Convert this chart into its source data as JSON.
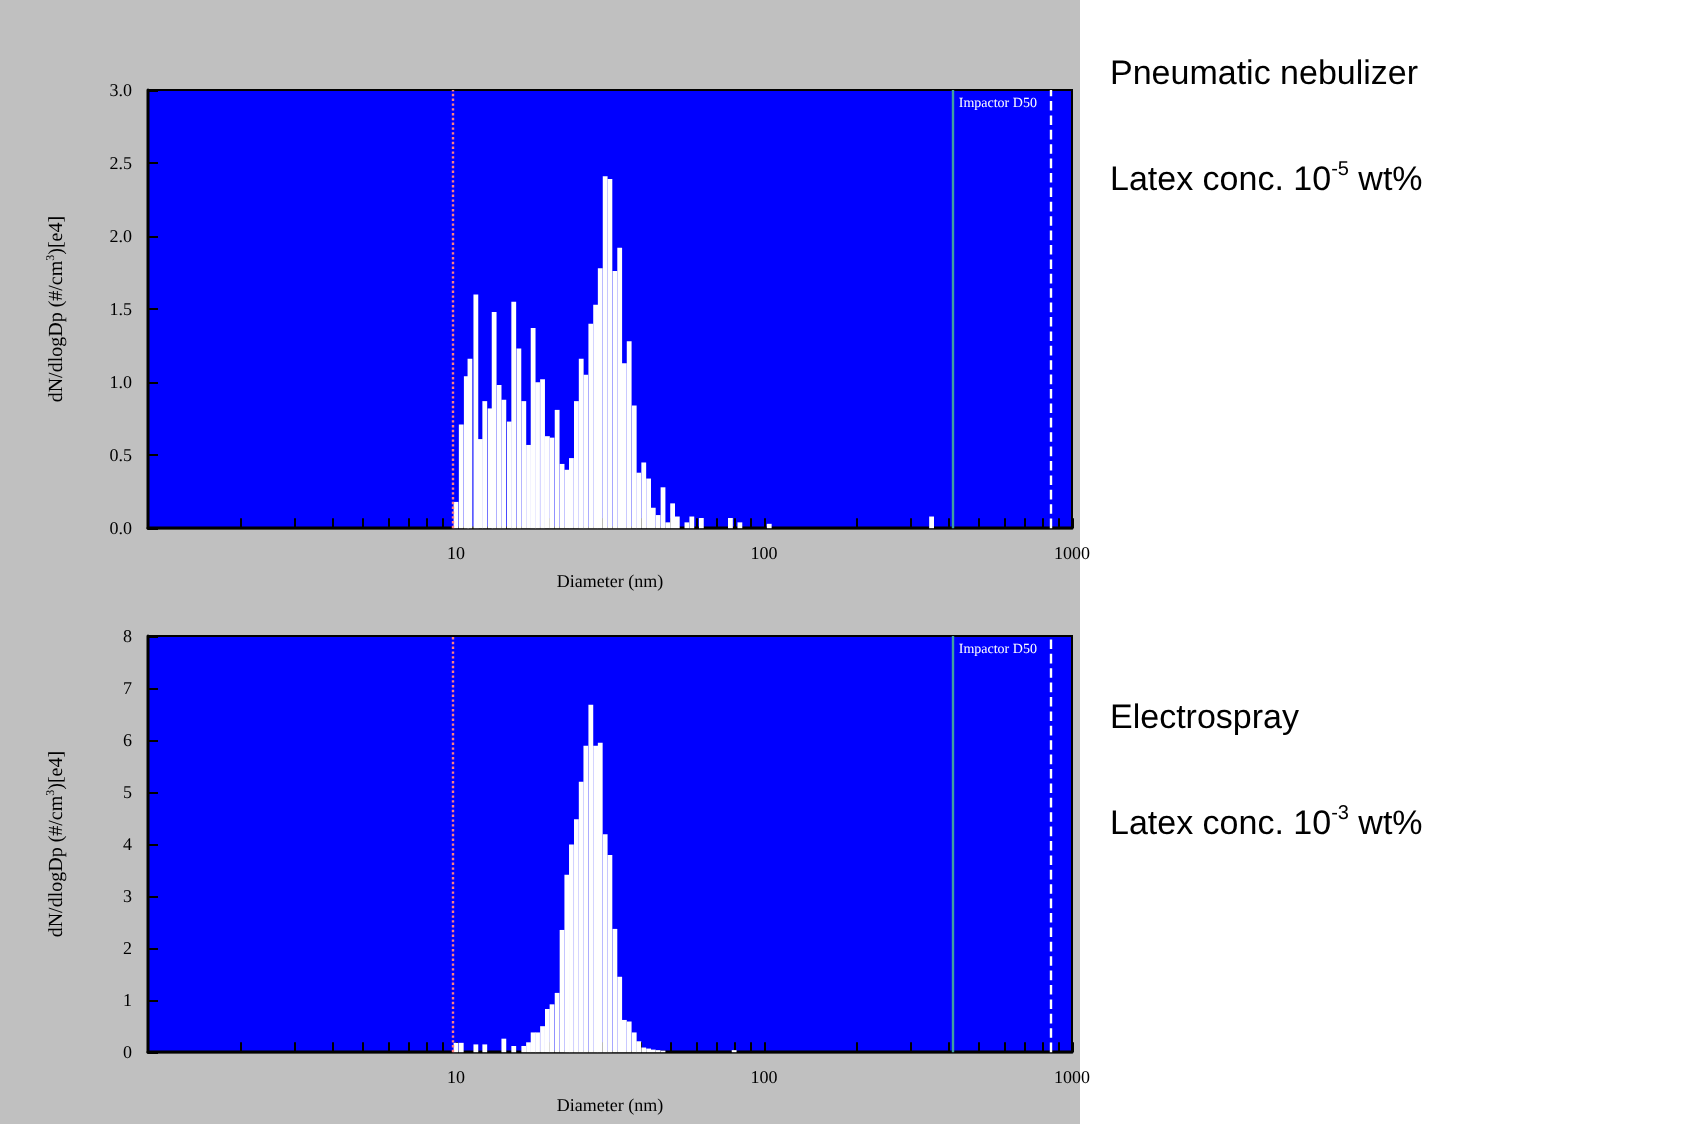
{
  "chart_data": [
    {
      "type": "bar",
      "xlabel": "Diameter (nm)",
      "ylabel": "dN/dlogDp (#/cm$^{3}$)[e4]",
      "color": "#ffffff",
      "log": "x",
      "grid": false,
      "x": [
        10.0,
        10.4,
        10.8,
        11.1,
        11.6,
        12.0,
        12.4,
        12.9,
        13.3,
        13.8,
        14.3,
        14.9,
        15.4,
        16.0,
        16.6,
        17.2,
        17.8,
        18.4,
        19.1,
        19.8,
        20.5,
        21.3,
        22.1,
        22.9,
        23.7,
        24.6,
        25.5,
        26.4,
        27.4,
        28.4,
        29.4,
        30.5,
        31.6,
        32.8,
        34.0,
        35.2,
        36.5,
        37.9,
        39.2,
        40.7,
        42.2,
        43.7,
        45.3,
        47.0,
        48.7,
        50.5,
        52.3,
        56.2,
        58.3,
        62.6,
        77.8,
        83.5,
        104,
        350
      ],
      "values": [
        0.18,
        0.71,
        1.04,
        1.16,
        1.6,
        0.61,
        0.87,
        0.82,
        1.48,
        0.98,
        0.88,
        0.73,
        1.55,
        1.23,
        0.87,
        0.57,
        1.37,
        1.0,
        1.02,
        0.63,
        0.62,
        0.81,
        0.44,
        0.4,
        0.48,
        0.87,
        1.16,
        1.05,
        1.4,
        1.53,
        1.78,
        2.41,
        2.39,
        1.76,
        1.92,
        1.13,
        1.28,
        0.84,
        0.38,
        0.45,
        0.34,
        0.14,
        0.09,
        0.28,
        0.04,
        0.17,
        0.08,
        0.04,
        0.08,
        0.07,
        0.07,
        0.04,
        0.03,
        0.08
      ],
      "xlim": [
        1,
        1000
      ],
      "xticks": [
        {
          "value": 2,
          "label": null
        },
        {
          "value": 3,
          "label": null
        },
        {
          "value": 4,
          "label": null
        },
        {
          "value": 5,
          "label": null
        },
        {
          "value": 6,
          "label": null
        },
        {
          "value": 7,
          "label": null
        },
        {
          "value": 8,
          "label": null
        },
        {
          "value": 9,
          "label": null
        },
        10,
        {
          "value": 20,
          "label": null
        },
        {
          "value": 30,
          "label": null
        },
        {
          "value": 40,
          "label": null
        },
        {
          "value": 50,
          "label": null
        },
        {
          "value": 60,
          "label": null
        },
        {
          "value": 70,
          "label": null
        },
        {
          "value": 80,
          "label": null
        },
        {
          "value": 90,
          "label": null
        },
        100,
        {
          "value": 200,
          "label": null
        },
        {
          "value": 300,
          "label": null
        },
        {
          "value": 400,
          "label": null
        },
        {
          "value": 500,
          "label": null
        },
        {
          "value": 600,
          "label": null
        },
        {
          "value": 700,
          "label": null
        },
        {
          "value": 800,
          "label": null
        },
        {
          "value": 900,
          "label": null
        },
        1000
      ],
      "ylim": [
        0,
        3
      ],
      "yticks": [
        {
          "value": 0,
          "label": "0.0"
        },
        {
          "value": 0.5,
          "label": "0.5"
        },
        {
          "value": 1,
          "label": "1.0"
        },
        {
          "value": 1.5,
          "label": "1.5"
        },
        {
          "value": 2,
          "label": "2.0"
        },
        {
          "value": 2.5,
          "label": "2.5"
        },
        {
          "value": 3,
          "label": "3.0"
        }
      ],
      "ref_lines": [
        {
          "axis": "x",
          "value": 9.8,
          "label": null,
          "color": "#ff8080",
          "line_style": "dotted"
        },
        {
          "axis": "x",
          "value": 410,
          "label": "Impactor D50",
          "color": "#40a0a0",
          "line_style": "solid"
        },
        {
          "axis": "x",
          "value": 850,
          "label": null,
          "color": "#ffffff",
          "line_style": "dashed"
        }
      ],
      "annotations": [
        "Pneumatic nebulizer",
        "Latex conc. 10$^{-5}$ wt%"
      ]
    },
    {
      "type": "bar",
      "xlabel": "Diameter (nm)",
      "ylabel": "dN/dlogDp (#/cm$^{3}$)[e4]",
      "color": "#ffffff",
      "log": "x",
      "grid": false,
      "x": [
        10.0,
        10.4,
        11.6,
        12.4,
        14.3,
        15.4,
        16.6,
        17.2,
        17.8,
        18.4,
        19.1,
        19.8,
        20.5,
        21.3,
        22.1,
        22.9,
        23.7,
        24.6,
        25.5,
        26.4,
        27.4,
        28.4,
        29.4,
        30.5,
        31.6,
        32.8,
        34.0,
        35.2,
        36.5,
        37.9,
        39.2,
        40.7,
        42.2,
        43.7,
        45.3,
        47.0,
        80.0
      ],
      "values": [
        0.18,
        0.18,
        0.15,
        0.15,
        0.26,
        0.12,
        0.12,
        0.19,
        0.38,
        0.38,
        0.5,
        0.83,
        0.92,
        1.14,
        2.35,
        3.41,
        3.99,
        4.48,
        5.2,
        5.89,
        6.68,
        5.89,
        5.95,
        4.19,
        3.79,
        2.37,
        1.45,
        0.62,
        0.59,
        0.38,
        0.21,
        0.09,
        0.07,
        0.05,
        0.04,
        0.03,
        0.04
      ],
      "xlim": [
        1,
        1000
      ],
      "xticks": [
        {
          "value": 2,
          "label": null
        },
        {
          "value": 3,
          "label": null
        },
        {
          "value": 4,
          "label": null
        },
        {
          "value": 5,
          "label": null
        },
        {
          "value": 6,
          "label": null
        },
        {
          "value": 7,
          "label": null
        },
        {
          "value": 8,
          "label": null
        },
        {
          "value": 9,
          "label": null
        },
        10,
        {
          "value": 20,
          "label": null
        },
        {
          "value": 30,
          "label": null
        },
        {
          "value": 40,
          "label": null
        },
        {
          "value": 50,
          "label": null
        },
        {
          "value": 60,
          "label": null
        },
        {
          "value": 70,
          "label": null
        },
        {
          "value": 80,
          "label": null
        },
        {
          "value": 90,
          "label": null
        },
        100,
        {
          "value": 200,
          "label": null
        },
        {
          "value": 300,
          "label": null
        },
        {
          "value": 400,
          "label": null
        },
        {
          "value": 500,
          "label": null
        },
        {
          "value": 600,
          "label": null
        },
        {
          "value": 700,
          "label": null
        },
        {
          "value": 800,
          "label": null
        },
        {
          "value": 900,
          "label": null
        },
        1000
      ],
      "ylim": [
        0,
        8
      ],
      "yticks": [
        0,
        1,
        2,
        3,
        4,
        5,
        6,
        7,
        8
      ],
      "ref_lines": [
        {
          "axis": "x",
          "value": 9.8,
          "label": null,
          "color": "#ff8080",
          "line_style": "dotted"
        },
        {
          "axis": "x",
          "value": 410,
          "label": "Impactor D50",
          "color": "#40a0a0",
          "line_style": "solid"
        },
        {
          "axis": "x",
          "value": 850,
          "label": null,
          "color": "#ffffff",
          "line_style": "dashed"
        }
      ],
      "annotations": [
        "Electrospray",
        "Latex conc. 10$^{-3}$ wt%"
      ]
    }
  ]
}
